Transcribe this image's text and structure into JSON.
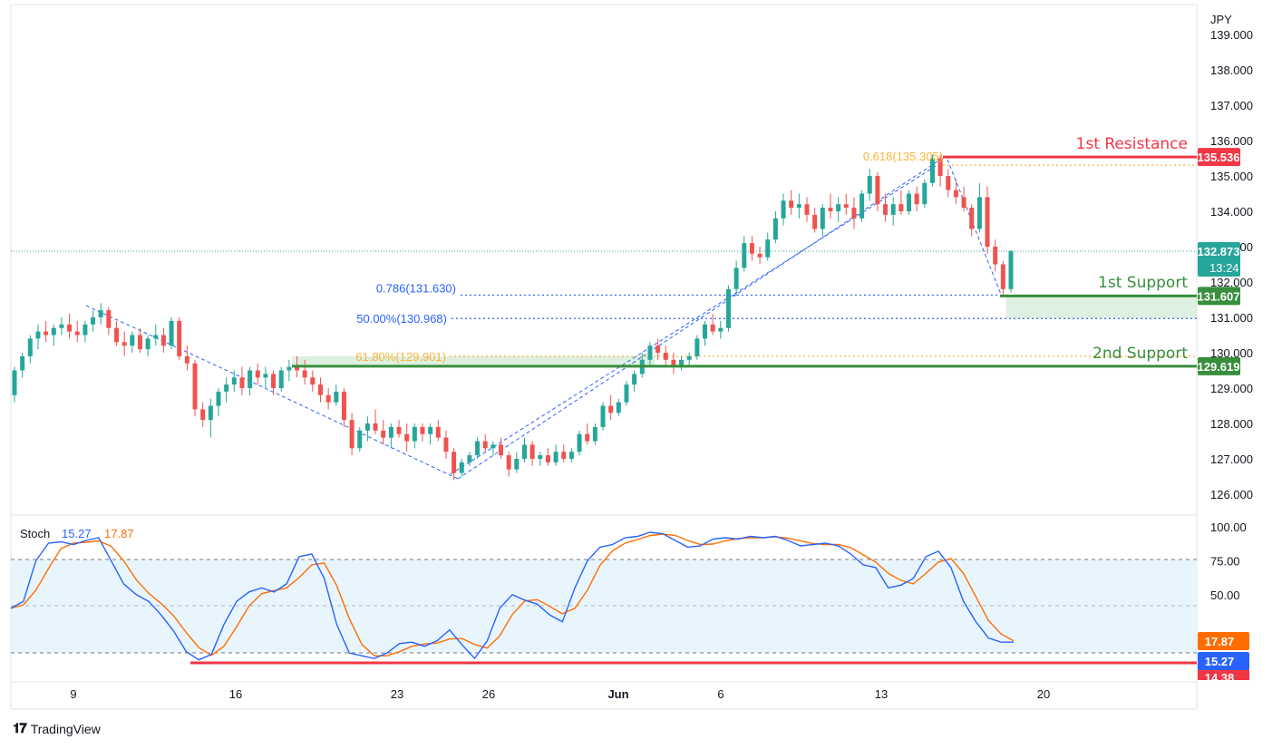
{
  "currency": "JPY",
  "brand": {
    "logo_icon": "tradingview-logo-icon",
    "name": "TradingView"
  },
  "colors": {
    "up": "#26a69a",
    "down": "#ef5350",
    "resistance": "#f23645",
    "support": "#388e3c",
    "fib_gold": "#f9b43a",
    "fib_blue": "#2962ff",
    "stoch_k": "#2962ff",
    "stoch_d": "#ff6d00",
    "band_fill": "#e3f2fd",
    "price_tag": "#26a69a"
  },
  "price_axis": {
    "ticks": [
      "139.000",
      "138.000",
      "137.000",
      "136.000",
      "135.000",
      "134.000",
      "133.000",
      "132.000",
      "131.000",
      "130.000",
      "129.000",
      "128.000",
      "127.000",
      "126.000"
    ]
  },
  "stoch_axis": {
    "ticks": [
      "100.00",
      "75.00",
      "50.00"
    ]
  },
  "time_axis": {
    "labels": [
      "9",
      "16",
      "23",
      "26",
      "Jun",
      "6",
      "13",
      "20"
    ]
  },
  "levels": {
    "resistance_1": {
      "label": "1st Resistance",
      "tag": "135.536"
    },
    "support_1": {
      "label": "1st Support",
      "tag": "131.607"
    },
    "support_2": {
      "label": "2nd Support",
      "tag": "129.619"
    }
  },
  "fib": {
    "f618": "0.618(135.305)",
    "f786": "0.786(131.630)",
    "f50": "50.00%(130.968)",
    "f6180": "61.80%(129.901)"
  },
  "last_price": {
    "tag": "132.873",
    "countdown": "13:24"
  },
  "stoch": {
    "name": "Stoch",
    "k": "15.27",
    "d": "17.87",
    "hidden_tag": "14.38"
  },
  "chart_data": {
    "type": "candlestick",
    "y_range": [
      125.6,
      139.2
    ],
    "candles": [
      [
        128.8,
        129.6,
        128.6,
        129.5
      ],
      [
        129.5,
        130.0,
        129.3,
        129.9
      ],
      [
        129.9,
        130.5,
        129.7,
        130.4
      ],
      [
        130.4,
        130.8,
        130.1,
        130.6
      ],
      [
        130.6,
        130.9,
        130.3,
        130.5
      ],
      [
        130.5,
        130.8,
        130.2,
        130.7
      ],
      [
        130.7,
        131.0,
        130.5,
        130.8
      ],
      [
        130.8,
        131.1,
        130.4,
        130.6
      ],
      [
        130.6,
        130.9,
        130.3,
        130.5
      ],
      [
        130.5,
        130.9,
        130.3,
        130.8
      ],
      [
        130.8,
        131.2,
        130.6,
        131.0
      ],
      [
        131.0,
        131.4,
        130.8,
        131.2
      ],
      [
        131.2,
        131.3,
        130.5,
        130.7
      ],
      [
        130.7,
        130.9,
        130.2,
        130.3
      ],
      [
        130.3,
        130.6,
        129.9,
        130.2
      ],
      [
        130.2,
        130.6,
        130.0,
        130.5
      ],
      [
        130.5,
        130.7,
        130.0,
        130.1
      ],
      [
        130.1,
        130.5,
        129.9,
        130.4
      ],
      [
        130.4,
        130.8,
        130.2,
        130.5
      ],
      [
        130.5,
        130.7,
        130.0,
        130.2
      ],
      [
        130.2,
        131.0,
        130.1,
        130.9
      ],
      [
        130.9,
        131.0,
        129.8,
        129.9
      ],
      [
        129.9,
        130.2,
        129.5,
        129.7
      ],
      [
        129.7,
        129.8,
        128.2,
        128.4
      ],
      [
        128.4,
        128.6,
        127.9,
        128.1
      ],
      [
        128.1,
        128.7,
        127.6,
        128.5
      ],
      [
        128.5,
        129.0,
        128.2,
        128.9
      ],
      [
        128.9,
        129.3,
        128.6,
        129.1
      ],
      [
        129.1,
        129.5,
        128.9,
        129.3
      ],
      [
        129.3,
        129.6,
        128.8,
        129.0
      ],
      [
        129.0,
        129.6,
        128.8,
        129.5
      ],
      [
        129.5,
        129.7,
        129.1,
        129.3
      ],
      [
        129.3,
        129.6,
        129.0,
        129.4
      ],
      [
        129.4,
        129.5,
        128.8,
        129.0
      ],
      [
        129.0,
        129.6,
        128.9,
        129.5
      ],
      [
        129.5,
        129.8,
        129.2,
        129.6
      ],
      [
        129.6,
        129.9,
        129.3,
        129.5
      ],
      [
        129.5,
        129.8,
        129.1,
        129.3
      ],
      [
        129.3,
        129.5,
        128.9,
        129.1
      ],
      [
        129.1,
        129.3,
        128.6,
        128.8
      ],
      [
        128.8,
        129.0,
        128.4,
        128.6
      ],
      [
        128.6,
        129.1,
        128.5,
        128.9
      ],
      [
        128.9,
        129.0,
        127.9,
        128.1
      ],
      [
        128.1,
        128.3,
        127.1,
        127.3
      ],
      [
        127.3,
        127.9,
        127.2,
        127.8
      ],
      [
        127.8,
        128.2,
        127.5,
        128.0
      ],
      [
        128.0,
        128.4,
        127.7,
        127.8
      ],
      [
        127.8,
        128.1,
        127.4,
        127.6
      ],
      [
        127.6,
        128.0,
        127.3,
        127.9
      ],
      [
        127.9,
        128.1,
        127.6,
        127.7
      ],
      [
        127.7,
        128.0,
        127.2,
        127.5
      ],
      [
        127.5,
        128.0,
        127.3,
        127.9
      ],
      [
        127.9,
        128.0,
        127.5,
        127.7
      ],
      [
        127.7,
        128.0,
        127.4,
        127.9
      ],
      [
        127.9,
        128.1,
        127.5,
        127.6
      ],
      [
        127.6,
        127.8,
        127.0,
        127.2
      ],
      [
        127.2,
        127.3,
        126.4,
        126.6
      ],
      [
        126.6,
        127.0,
        126.5,
        126.9
      ],
      [
        126.9,
        127.2,
        126.8,
        127.1
      ],
      [
        127.1,
        127.6,
        127.0,
        127.5
      ],
      [
        127.5,
        127.7,
        127.2,
        127.3
      ],
      [
        127.3,
        127.5,
        127.1,
        127.4
      ],
      [
        127.4,
        127.6,
        127.0,
        127.1
      ],
      [
        127.1,
        127.2,
        126.5,
        126.7
      ],
      [
        126.7,
        127.2,
        126.6,
        127.0
      ],
      [
        127.0,
        127.6,
        126.9,
        127.4
      ],
      [
        127.4,
        127.5,
        126.8,
        127.0
      ],
      [
        127.0,
        127.2,
        126.8,
        127.1
      ],
      [
        127.1,
        127.3,
        126.8,
        126.9
      ],
      [
        126.9,
        127.4,
        126.8,
        127.2
      ],
      [
        127.2,
        127.4,
        126.9,
        127.0
      ],
      [
        127.0,
        127.3,
        126.9,
        127.2
      ],
      [
        127.2,
        127.8,
        127.1,
        127.7
      ],
      [
        127.7,
        128.0,
        127.4,
        127.5
      ],
      [
        127.5,
        128.0,
        127.4,
        127.9
      ],
      [
        127.9,
        128.6,
        127.8,
        128.5
      ],
      [
        128.5,
        128.8,
        128.1,
        128.3
      ],
      [
        128.3,
        128.7,
        128.2,
        128.6
      ],
      [
        128.6,
        129.2,
        128.5,
        129.1
      ],
      [
        129.1,
        129.5,
        128.9,
        129.4
      ],
      [
        129.4,
        130.0,
        129.3,
        129.8
      ],
      [
        129.8,
        130.3,
        129.6,
        130.2
      ],
      [
        130.2,
        130.4,
        129.8,
        130.0
      ],
      [
        130.0,
        130.2,
        129.6,
        129.8
      ],
      [
        129.8,
        130.0,
        129.4,
        129.6
      ],
      [
        129.6,
        129.9,
        129.5,
        129.8
      ],
      [
        129.8,
        130.0,
        129.6,
        129.9
      ],
      [
        129.9,
        130.5,
        129.8,
        130.4
      ],
      [
        130.4,
        130.9,
        130.2,
        130.8
      ],
      [
        130.8,
        131.1,
        130.5,
        130.6
      ],
      [
        130.6,
        130.9,
        130.4,
        130.7
      ],
      [
        130.7,
        131.9,
        130.6,
        131.8
      ],
      [
        131.8,
        132.6,
        131.6,
        132.4
      ],
      [
        132.4,
        133.3,
        132.3,
        133.1
      ],
      [
        133.1,
        133.3,
        132.6,
        132.8
      ],
      [
        132.8,
        133.0,
        132.5,
        132.7
      ],
      [
        132.7,
        133.4,
        132.6,
        133.2
      ],
      [
        133.2,
        134.0,
        133.1,
        133.8
      ],
      [
        133.8,
        134.5,
        133.6,
        134.3
      ],
      [
        134.3,
        134.6,
        133.9,
        134.1
      ],
      [
        134.1,
        134.5,
        133.8,
        134.2
      ],
      [
        134.2,
        134.4,
        133.7,
        133.9
      ],
      [
        133.9,
        134.1,
        133.4,
        133.5
      ],
      [
        133.5,
        134.2,
        133.3,
        134.1
      ],
      [
        134.1,
        134.5,
        133.8,
        134.0
      ],
      [
        134.0,
        134.4,
        133.7,
        134.2
      ],
      [
        134.2,
        134.5,
        133.9,
        134.1
      ],
      [
        134.1,
        134.4,
        133.5,
        133.8
      ],
      [
        133.8,
        134.6,
        133.7,
        134.5
      ],
      [
        134.5,
        135.2,
        134.3,
        135.0
      ],
      [
        135.0,
        135.1,
        134.0,
        134.2
      ],
      [
        134.2,
        134.5,
        133.7,
        133.9
      ],
      [
        133.9,
        134.4,
        133.6,
        134.2
      ],
      [
        134.2,
        134.6,
        133.9,
        134.0
      ],
      [
        134.0,
        134.6,
        133.9,
        134.5
      ],
      [
        134.5,
        134.7,
        134.0,
        134.2
      ],
      [
        134.2,
        134.9,
        134.1,
        134.8
      ],
      [
        134.8,
        135.6,
        134.7,
        135.5
      ],
      [
        135.5,
        135.6,
        134.7,
        135.0
      ],
      [
        135.0,
        135.2,
        134.4,
        134.6
      ],
      [
        134.6,
        134.9,
        134.2,
        134.4
      ],
      [
        134.4,
        134.7,
        134.0,
        134.1
      ],
      [
        134.1,
        134.2,
        133.3,
        133.5
      ],
      [
        133.5,
        134.8,
        133.4,
        134.4
      ],
      [
        134.4,
        134.7,
        132.8,
        133.0
      ],
      [
        133.0,
        133.2,
        132.3,
        132.5
      ],
      [
        132.5,
        132.6,
        131.6,
        131.8
      ],
      [
        131.8,
        132.9,
        131.7,
        132.873
      ]
    ],
    "stoch_k": [
      40,
      45,
      75,
      88,
      89,
      87,
      90,
      92,
      75,
      58,
      50,
      45,
      35,
      23,
      8,
      2,
      6,
      28,
      45,
      52,
      55,
      52,
      58,
      78,
      80,
      62,
      28,
      7,
      5,
      3,
      7,
      14,
      15,
      12,
      16,
      24,
      13,
      3,
      16,
      40,
      50,
      46,
      43,
      35,
      30,
      55,
      75,
      85,
      87,
      92,
      93,
      96,
      95,
      90,
      85,
      86,
      91,
      92,
      91,
      93,
      92,
      93,
      90,
      86,
      87,
      88,
      86,
      80,
      72,
      70,
      55,
      57,
      62,
      78,
      82,
      70,
      45,
      30,
      18,
      15,
      15
    ]
  }
}
